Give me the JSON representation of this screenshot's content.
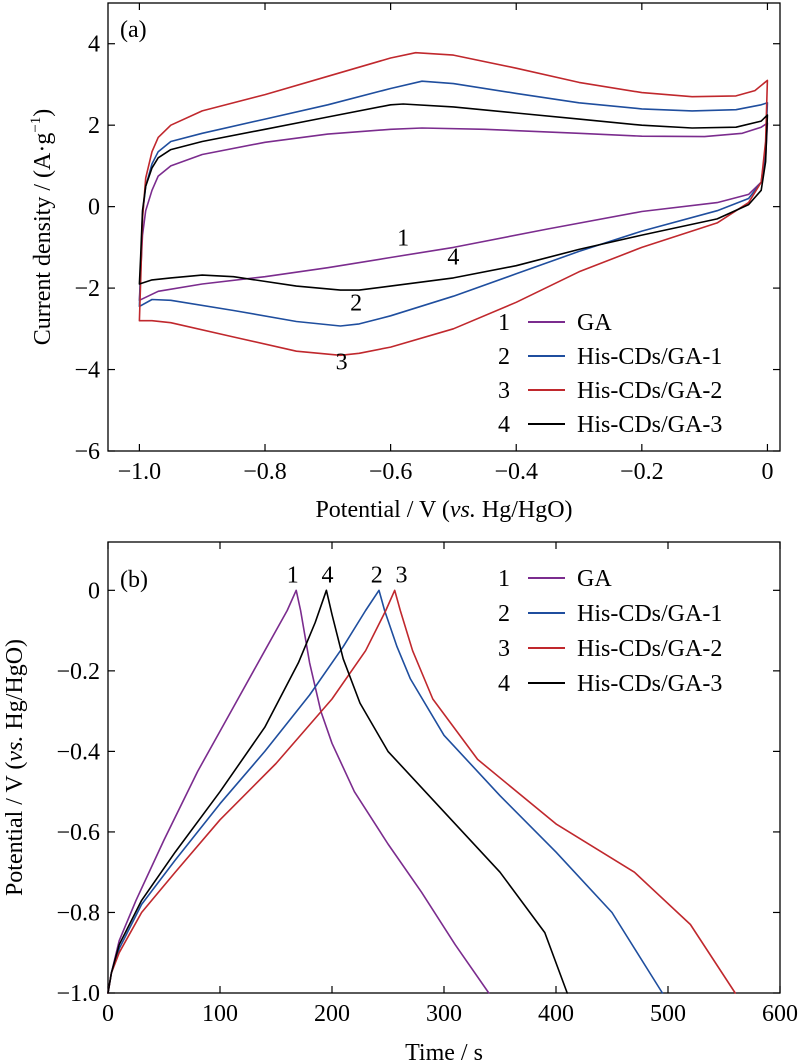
{
  "chart_data": [
    {
      "type": "line",
      "panel_label": "(a)",
      "xlabel_plain": "Potential / V (",
      "xlabel_italic": "vs.",
      "xlabel_tail": " Hg/HgO)",
      "ylabel_main": "Current density / (A·g",
      "ylabel_sup": "−1",
      "ylabel_close": ")",
      "xlim": [
        -1.05,
        0.02
      ],
      "ylim": [
        -6,
        5
      ],
      "xticks": [
        -1.0,
        -0.8,
        -0.6,
        -0.4,
        -0.2,
        0
      ],
      "xtick_labels": [
        "−1.0",
        "−0.8",
        "−0.6",
        "−0.4",
        "−0.2",
        "0"
      ],
      "yticks": [
        -6,
        -4,
        -2,
        0,
        2,
        4
      ],
      "ytick_labels": [
        "−6",
        "−4",
        "−2",
        "0",
        "2",
        "4"
      ],
      "legend_position": "bottom-right",
      "series": [
        {
          "id": "1",
          "name": "GA",
          "color": "#7b2c8e",
          "upper": [
            [
              -1.0,
              -2.3
            ],
            [
              -0.998,
              -1.6
            ],
            [
              -0.995,
              -0.7
            ],
            [
              -0.99,
              -0.1
            ],
            [
              -0.98,
              0.4
            ],
            [
              -0.97,
              0.75
            ],
            [
              -0.95,
              1.0
            ],
            [
              -0.9,
              1.28
            ],
            [
              -0.8,
              1.58
            ],
            [
              -0.7,
              1.78
            ],
            [
              -0.6,
              1.9
            ],
            [
              -0.55,
              1.93
            ],
            [
              -0.45,
              1.9
            ],
            [
              -0.3,
              1.8
            ],
            [
              -0.2,
              1.73
            ],
            [
              -0.1,
              1.72
            ],
            [
              -0.04,
              1.8
            ],
            [
              -0.01,
              1.95
            ],
            [
              0.0,
              2.05
            ]
          ],
          "lower": [
            [
              0.0,
              2.05
            ],
            [
              -0.003,
              1.2
            ],
            [
              -0.01,
              0.6
            ],
            [
              -0.03,
              0.3
            ],
            [
              -0.08,
              0.1
            ],
            [
              -0.2,
              -0.12
            ],
            [
              -0.35,
              -0.55
            ],
            [
              -0.5,
              -1.0
            ],
            [
              -0.6,
              -1.25
            ],
            [
              -0.7,
              -1.5
            ],
            [
              -0.8,
              -1.72
            ],
            [
              -0.9,
              -1.9
            ],
            [
              -0.97,
              -2.08
            ],
            [
              -1.0,
              -2.3
            ]
          ]
        },
        {
          "id": "2",
          "name": "His-CDs/GA-1",
          "color": "#1f4e9e",
          "upper": [
            [
              -1.0,
              -2.45
            ],
            [
              -0.998,
              -1.5
            ],
            [
              -0.995,
              -0.2
            ],
            [
              -0.99,
              0.5
            ],
            [
              -0.98,
              1.05
            ],
            [
              -0.97,
              1.35
            ],
            [
              -0.95,
              1.6
            ],
            [
              -0.9,
              1.8
            ],
            [
              -0.8,
              2.15
            ],
            [
              -0.7,
              2.5
            ],
            [
              -0.6,
              2.9
            ],
            [
              -0.55,
              3.08
            ],
            [
              -0.5,
              3.02
            ],
            [
              -0.4,
              2.78
            ],
            [
              -0.3,
              2.55
            ],
            [
              -0.2,
              2.4
            ],
            [
              -0.12,
              2.35
            ],
            [
              -0.05,
              2.38
            ],
            [
              -0.01,
              2.5
            ],
            [
              0.0,
              2.55
            ]
          ],
          "lower": [
            [
              0.0,
              2.55
            ],
            [
              -0.003,
              1.4
            ],
            [
              -0.01,
              0.6
            ],
            [
              -0.03,
              0.2
            ],
            [
              -0.08,
              -0.1
            ],
            [
              -0.2,
              -0.6
            ],
            [
              -0.3,
              -1.1
            ],
            [
              -0.4,
              -1.65
            ],
            [
              -0.5,
              -2.2
            ],
            [
              -0.6,
              -2.68
            ],
            [
              -0.65,
              -2.88
            ],
            [
              -0.68,
              -2.93
            ],
            [
              -0.75,
              -2.82
            ],
            [
              -0.85,
              -2.55
            ],
            [
              -0.95,
              -2.3
            ],
            [
              -0.98,
              -2.28
            ],
            [
              -1.0,
              -2.45
            ]
          ]
        },
        {
          "id": "3",
          "name": "His-CDs/GA-2",
          "color": "#c0282d",
          "upper": [
            [
              -1.0,
              -2.8
            ],
            [
              -0.998,
              -1.8
            ],
            [
              -0.995,
              -0.3
            ],
            [
              -0.99,
              0.7
            ],
            [
              -0.98,
              1.35
            ],
            [
              -0.97,
              1.7
            ],
            [
              -0.95,
              2.0
            ],
            [
              -0.9,
              2.35
            ],
            [
              -0.8,
              2.75
            ],
            [
              -0.7,
              3.2
            ],
            [
              -0.6,
              3.65
            ],
            [
              -0.56,
              3.78
            ],
            [
              -0.5,
              3.72
            ],
            [
              -0.4,
              3.4
            ],
            [
              -0.3,
              3.05
            ],
            [
              -0.2,
              2.8
            ],
            [
              -0.12,
              2.7
            ],
            [
              -0.05,
              2.72
            ],
            [
              -0.02,
              2.85
            ],
            [
              0.0,
              3.1
            ]
          ],
          "lower": [
            [
              0.0,
              3.1
            ],
            [
              -0.003,
              1.6
            ],
            [
              -0.01,
              0.6
            ],
            [
              -0.03,
              0.1
            ],
            [
              -0.08,
              -0.4
            ],
            [
              -0.2,
              -1.0
            ],
            [
              -0.3,
              -1.6
            ],
            [
              -0.4,
              -2.35
            ],
            [
              -0.5,
              -3.0
            ],
            [
              -0.6,
              -3.45
            ],
            [
              -0.65,
              -3.6
            ],
            [
              -0.68,
              -3.65
            ],
            [
              -0.75,
              -3.55
            ],
            [
              -0.85,
              -3.2
            ],
            [
              -0.95,
              -2.85
            ],
            [
              -0.98,
              -2.8
            ],
            [
              -1.0,
              -2.8
            ]
          ]
        },
        {
          "id": "4",
          "name": "His-CDs/GA-3",
          "color": "#000000",
          "upper": [
            [
              -1.0,
              -1.9
            ],
            [
              -0.998,
              -1.2
            ],
            [
              -0.995,
              -0.1
            ],
            [
              -0.99,
              0.5
            ],
            [
              -0.98,
              0.95
            ],
            [
              -0.97,
              1.2
            ],
            [
              -0.95,
              1.4
            ],
            [
              -0.9,
              1.6
            ],
            [
              -0.8,
              1.9
            ],
            [
              -0.7,
              2.2
            ],
            [
              -0.6,
              2.5
            ],
            [
              -0.58,
              2.52
            ],
            [
              -0.5,
              2.45
            ],
            [
              -0.4,
              2.3
            ],
            [
              -0.3,
              2.15
            ],
            [
              -0.2,
              2.0
            ],
            [
              -0.12,
              1.93
            ],
            [
              -0.05,
              1.95
            ],
            [
              -0.01,
              2.1
            ],
            [
              0.0,
              2.25
            ]
          ],
          "lower": [
            [
              0.0,
              2.25
            ],
            [
              -0.003,
              1.1
            ],
            [
              -0.01,
              0.4
            ],
            [
              -0.03,
              0.05
            ],
            [
              -0.08,
              -0.3
            ],
            [
              -0.2,
              -0.7
            ],
            [
              -0.3,
              -1.05
            ],
            [
              -0.4,
              -1.45
            ],
            [
              -0.5,
              -1.75
            ],
            [
              -0.6,
              -1.95
            ],
            [
              -0.65,
              -2.05
            ],
            [
              -0.68,
              -2.05
            ],
            [
              -0.75,
              -1.95
            ],
            [
              -0.85,
              -1.72
            ],
            [
              -0.9,
              -1.68
            ],
            [
              -0.95,
              -1.75
            ],
            [
              -0.98,
              -1.8
            ],
            [
              -1.0,
              -1.9
            ]
          ]
        }
      ],
      "curve_labels": [
        {
          "text": "1",
          "x": -0.58,
          "y": -0.95
        },
        {
          "text": "4",
          "x": -0.5,
          "y": -1.42
        },
        {
          "text": "2",
          "x": -0.655,
          "y": -2.55
        },
        {
          "text": "3",
          "x": -0.678,
          "y": -4.0
        }
      ]
    },
    {
      "type": "line",
      "panel_label": "(b)",
      "xlabel": "Time / s",
      "ylabel_plain": "Potential / V (",
      "ylabel_italic": "vs.",
      "ylabel_tail": " Hg/HgO)",
      "xlim": [
        0,
        600
      ],
      "ylim": [
        -1.0,
        0.12
      ],
      "xticks": [
        0,
        100,
        200,
        300,
        400,
        500,
        600
      ],
      "xtick_labels": [
        "0",
        "100",
        "200",
        "300",
        "400",
        "500",
        "600"
      ],
      "yticks": [
        -1.0,
        -0.8,
        -0.6,
        -0.4,
        -0.2,
        0
      ],
      "ytick_labels": [
        "−1.0",
        "−0.8",
        "−0.6",
        "−0.4",
        "−0.2",
        "0"
      ],
      "legend_position": "top-right",
      "series": [
        {
          "id": "1",
          "name": "GA",
          "color": "#7b2c8e",
          "points": [
            [
              0,
              -1.0
            ],
            [
              3,
              -0.95
            ],
            [
              10,
              -0.87
            ],
            [
              25,
              -0.77
            ],
            [
              50,
              -0.62
            ],
            [
              80,
              -0.45
            ],
            [
              110,
              -0.3
            ],
            [
              140,
              -0.15
            ],
            [
              160,
              -0.05
            ],
            [
              168,
              0.0
            ],
            [
              172,
              -0.05
            ],
            [
              180,
              -0.18
            ],
            [
              190,
              -0.3
            ],
            [
              200,
              -0.38
            ],
            [
              220,
              -0.5
            ],
            [
              250,
              -0.63
            ],
            [
              280,
              -0.75
            ],
            [
              310,
              -0.88
            ],
            [
              340,
              -1.0
            ]
          ]
        },
        {
          "id": "2",
          "name": "His-CDs/GA-1",
          "color": "#1f4e9e",
          "points": [
            [
              0,
              -1.0
            ],
            [
              3,
              -0.95
            ],
            [
              10,
              -0.89
            ],
            [
              30,
              -0.78
            ],
            [
              60,
              -0.67
            ],
            [
              100,
              -0.53
            ],
            [
              140,
              -0.4
            ],
            [
              180,
              -0.26
            ],
            [
              210,
              -0.14
            ],
            [
              230,
              -0.05
            ],
            [
              242,
              0.0
            ],
            [
              247,
              -0.05
            ],
            [
              258,
              -0.14
            ],
            [
              270,
              -0.22
            ],
            [
              300,
              -0.36
            ],
            [
              350,
              -0.51
            ],
            [
              400,
              -0.65
            ],
            [
              450,
              -0.8
            ],
            [
              495,
              -1.0
            ]
          ]
        },
        {
          "id": "3",
          "name": "His-CDs/GA-2",
          "color": "#c0282d",
          "points": [
            [
              0,
              -1.0
            ],
            [
              3,
              -0.95
            ],
            [
              10,
              -0.9
            ],
            [
              30,
              -0.8
            ],
            [
              60,
              -0.7
            ],
            [
              100,
              -0.57
            ],
            [
              150,
              -0.43
            ],
            [
              200,
              -0.27
            ],
            [
              230,
              -0.15
            ],
            [
              248,
              -0.05
            ],
            [
              256,
              0.0
            ],
            [
              261,
              -0.05
            ],
            [
              272,
              -0.15
            ],
            [
              290,
              -0.27
            ],
            [
              330,
              -0.42
            ],
            [
              400,
              -0.58
            ],
            [
              470,
              -0.7
            ],
            [
              520,
              -0.83
            ],
            [
              560,
              -1.0
            ]
          ]
        },
        {
          "id": "4",
          "name": "His-CDs/GA-3",
          "color": "#000000",
          "points": [
            [
              0,
              -1.0
            ],
            [
              3,
              -0.95
            ],
            [
              10,
              -0.88
            ],
            [
              30,
              -0.77
            ],
            [
              60,
              -0.65
            ],
            [
              100,
              -0.5
            ],
            [
              140,
              -0.34
            ],
            [
              170,
              -0.18
            ],
            [
              185,
              -0.08
            ],
            [
              195,
              0.0
            ],
            [
              200,
              -0.06
            ],
            [
              210,
              -0.17
            ],
            [
              225,
              -0.28
            ],
            [
              250,
              -0.4
            ],
            [
              300,
              -0.55
            ],
            [
              350,
              -0.7
            ],
            [
              390,
              -0.85
            ],
            [
              410,
              -1.0
            ]
          ]
        }
      ],
      "curve_labels": [
        {
          "text": "1",
          "x": 165,
          "y": 0.02
        },
        {
          "text": "4",
          "x": 196,
          "y": 0.02
        },
        {
          "text": "2",
          "x": 240,
          "y": 0.02
        },
        {
          "text": "3",
          "x": 262,
          "y": 0.02
        }
      ]
    }
  ]
}
